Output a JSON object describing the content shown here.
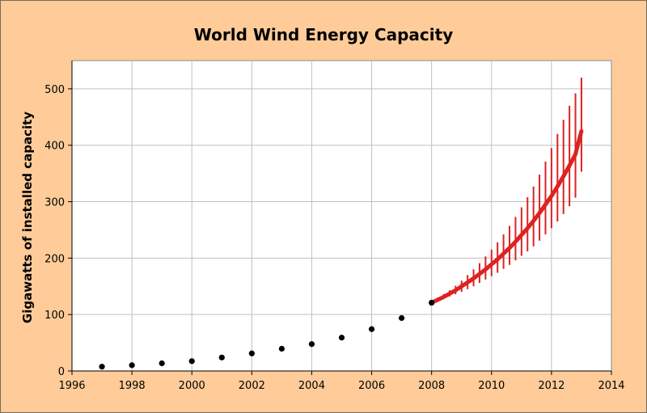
{
  "chart_data": {
    "type": "scatter",
    "title": "World Wind Energy Capacity",
    "xlabel": "",
    "ylabel": "Gigawatts of installed capacity",
    "xlim": [
      1996,
      2014
    ],
    "ylim": [
      0,
      550
    ],
    "x_ticks": [
      "1996",
      "1998",
      "2000",
      "2002",
      "2004",
      "2006",
      "2008",
      "2010",
      "2012",
      "2014"
    ],
    "y_ticks": [
      "0",
      "100",
      "200",
      "300",
      "400",
      "500"
    ],
    "grid": true,
    "legend": "none",
    "observed": {
      "x": [
        1997,
        1998,
        1999,
        2000,
        2001,
        2002,
        2003,
        2004,
        2005,
        2006,
        2007,
        2008
      ],
      "y": [
        7.6,
        10.2,
        13.6,
        17.4,
        23.9,
        31.1,
        39.4,
        47.6,
        59.1,
        74.1,
        93.8,
        121.0
      ],
      "color": "#000000"
    },
    "projection": {
      "x": [
        2008.0,
        2008.2,
        2008.4,
        2008.6,
        2008.8,
        2009.0,
        2009.2,
        2009.4,
        2009.6,
        2009.8,
        2010.0,
        2010.2,
        2010.4,
        2010.6,
        2010.8,
        2011.0,
        2011.2,
        2011.4,
        2011.6,
        2011.8,
        2012.0,
        2012.2,
        2012.4,
        2012.6,
        2012.8,
        2013.0
      ],
      "y": [
        121,
        126,
        131,
        137,
        143,
        150,
        157,
        164,
        172,
        180,
        189,
        198,
        208,
        218,
        229,
        241,
        253,
        266,
        280,
        295,
        310,
        327,
        345,
        364,
        384,
        425
      ],
      "error_low": [
        121,
        124,
        128,
        132,
        136,
        140,
        145,
        150,
        156,
        162,
        168,
        174,
        181,
        188,
        196,
        204,
        212,
        221,
        231,
        242,
        253,
        265,
        278,
        292,
        307,
        353
      ],
      "error_high": [
        121,
        130,
        136,
        143,
        151,
        160,
        170,
        180,
        191,
        203,
        215,
        228,
        242,
        257,
        273,
        290,
        308,
        327,
        348,
        371,
        395,
        420,
        445,
        470,
        492,
        520
      ],
      "color": "#dd2222"
    },
    "colors": {
      "background": "#ffcc99",
      "plot_area": "#ffffff",
      "grid": "#c0c0c0"
    }
  }
}
